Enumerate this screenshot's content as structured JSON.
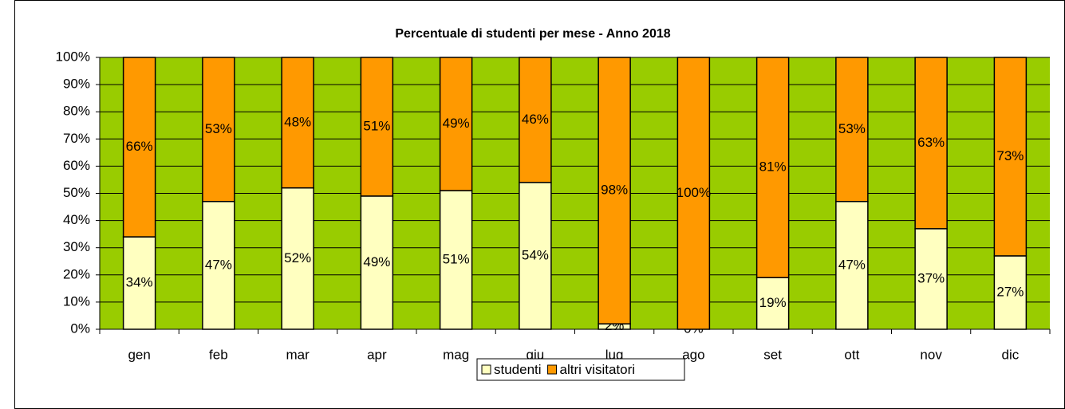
{
  "chart_data": {
    "type": "stacked_bar_percent",
    "title": "Percentuale di studenti per mese - Anno 2018",
    "categories": [
      "gen",
      "feb",
      "mar",
      "apr",
      "mag",
      "giu",
      "lug",
      "ago",
      "set",
      "ott",
      "nov",
      "dic"
    ],
    "series": [
      {
        "name": "studenti",
        "color": "#ffffc0",
        "values": [
          34,
          47,
          52,
          49,
          51,
          54,
          2,
          0,
          19,
          47,
          37,
          27
        ],
        "value_labels": [
          "34%",
          "47%",
          "52%",
          "49%",
          "51%",
          "54%",
          "2%",
          "0%",
          "19%",
          "47%",
          "37%",
          "27%"
        ]
      },
      {
        "name": "altri visitatori",
        "color": "#ff9900",
        "values": [
          66,
          53,
          48,
          51,
          49,
          46,
          98,
          100,
          81,
          53,
          63,
          73
        ],
        "value_labels": [
          "66%",
          "53%",
          "48%",
          "51%",
          "49%",
          "46%",
          "98%",
          "100%",
          "81%",
          "53%",
          "63%",
          "73%"
        ]
      }
    ],
    "ylim": [
      0,
      100
    ],
    "yticks": [
      {
        "value": 0,
        "label": "0%"
      },
      {
        "value": 10,
        "label": "10%"
      },
      {
        "value": 20,
        "label": "20%"
      },
      {
        "value": 30,
        "label": "30%"
      },
      {
        "value": 40,
        "label": "40%"
      },
      {
        "value": 50,
        "label": "50%"
      },
      {
        "value": 60,
        "label": "60%"
      },
      {
        "value": 70,
        "label": "70%"
      },
      {
        "value": 80,
        "label": "80%"
      },
      {
        "value": 90,
        "label": "90%"
      },
      {
        "value": 100,
        "label": "100%"
      }
    ],
    "grid": true,
    "plot_background": "#99cc00",
    "legend": "bottom"
  }
}
